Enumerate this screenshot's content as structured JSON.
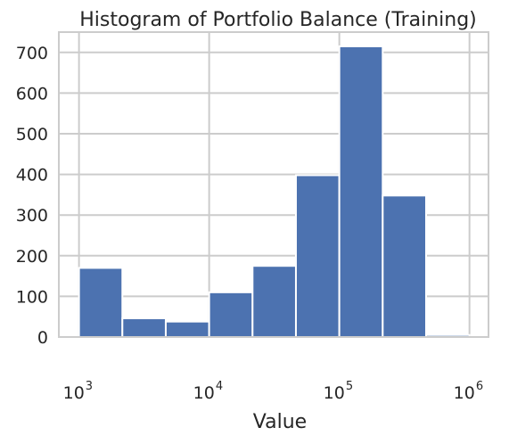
{
  "chart_data": {
    "type": "bar",
    "title": "Histogram of Portfolio Balance (Training)",
    "xlabel": "Value",
    "ylabel": "",
    "xscale": "log",
    "xlim": [
      700,
      1400000
    ],
    "ylim": [
      0,
      750
    ],
    "grid": true,
    "bar_color": "#4c72b0",
    "bins": [
      {
        "start": 1000,
        "end": 2154,
        "count": 170
      },
      {
        "start": 2154,
        "end": 4642,
        "count": 46
      },
      {
        "start": 4642,
        "end": 10000,
        "count": 38
      },
      {
        "start": 10000,
        "end": 21544,
        "count": 110
      },
      {
        "start": 21544,
        "end": 46416,
        "count": 175
      },
      {
        "start": 46416,
        "end": 100000,
        "count": 398
      },
      {
        "start": 100000,
        "end": 215443,
        "count": 715
      },
      {
        "start": 215443,
        "end": 464159,
        "count": 348
      },
      {
        "start": 464159,
        "end": 1000000,
        "count": 5
      }
    ],
    "yticks": [
      0,
      100,
      200,
      300,
      400,
      500,
      600,
      700
    ],
    "ytick_labels": [
      "0",
      "100",
      "200",
      "300",
      "400",
      "500",
      "600",
      "700"
    ],
    "xticks": [
      {
        "value": 1000,
        "base": "10",
        "exponent": "3"
      },
      {
        "value": 10000,
        "base": "10",
        "exponent": "4"
      },
      {
        "value": 100000,
        "base": "10",
        "exponent": "5"
      },
      {
        "value": 1000000,
        "base": "10",
        "exponent": "6"
      }
    ]
  }
}
